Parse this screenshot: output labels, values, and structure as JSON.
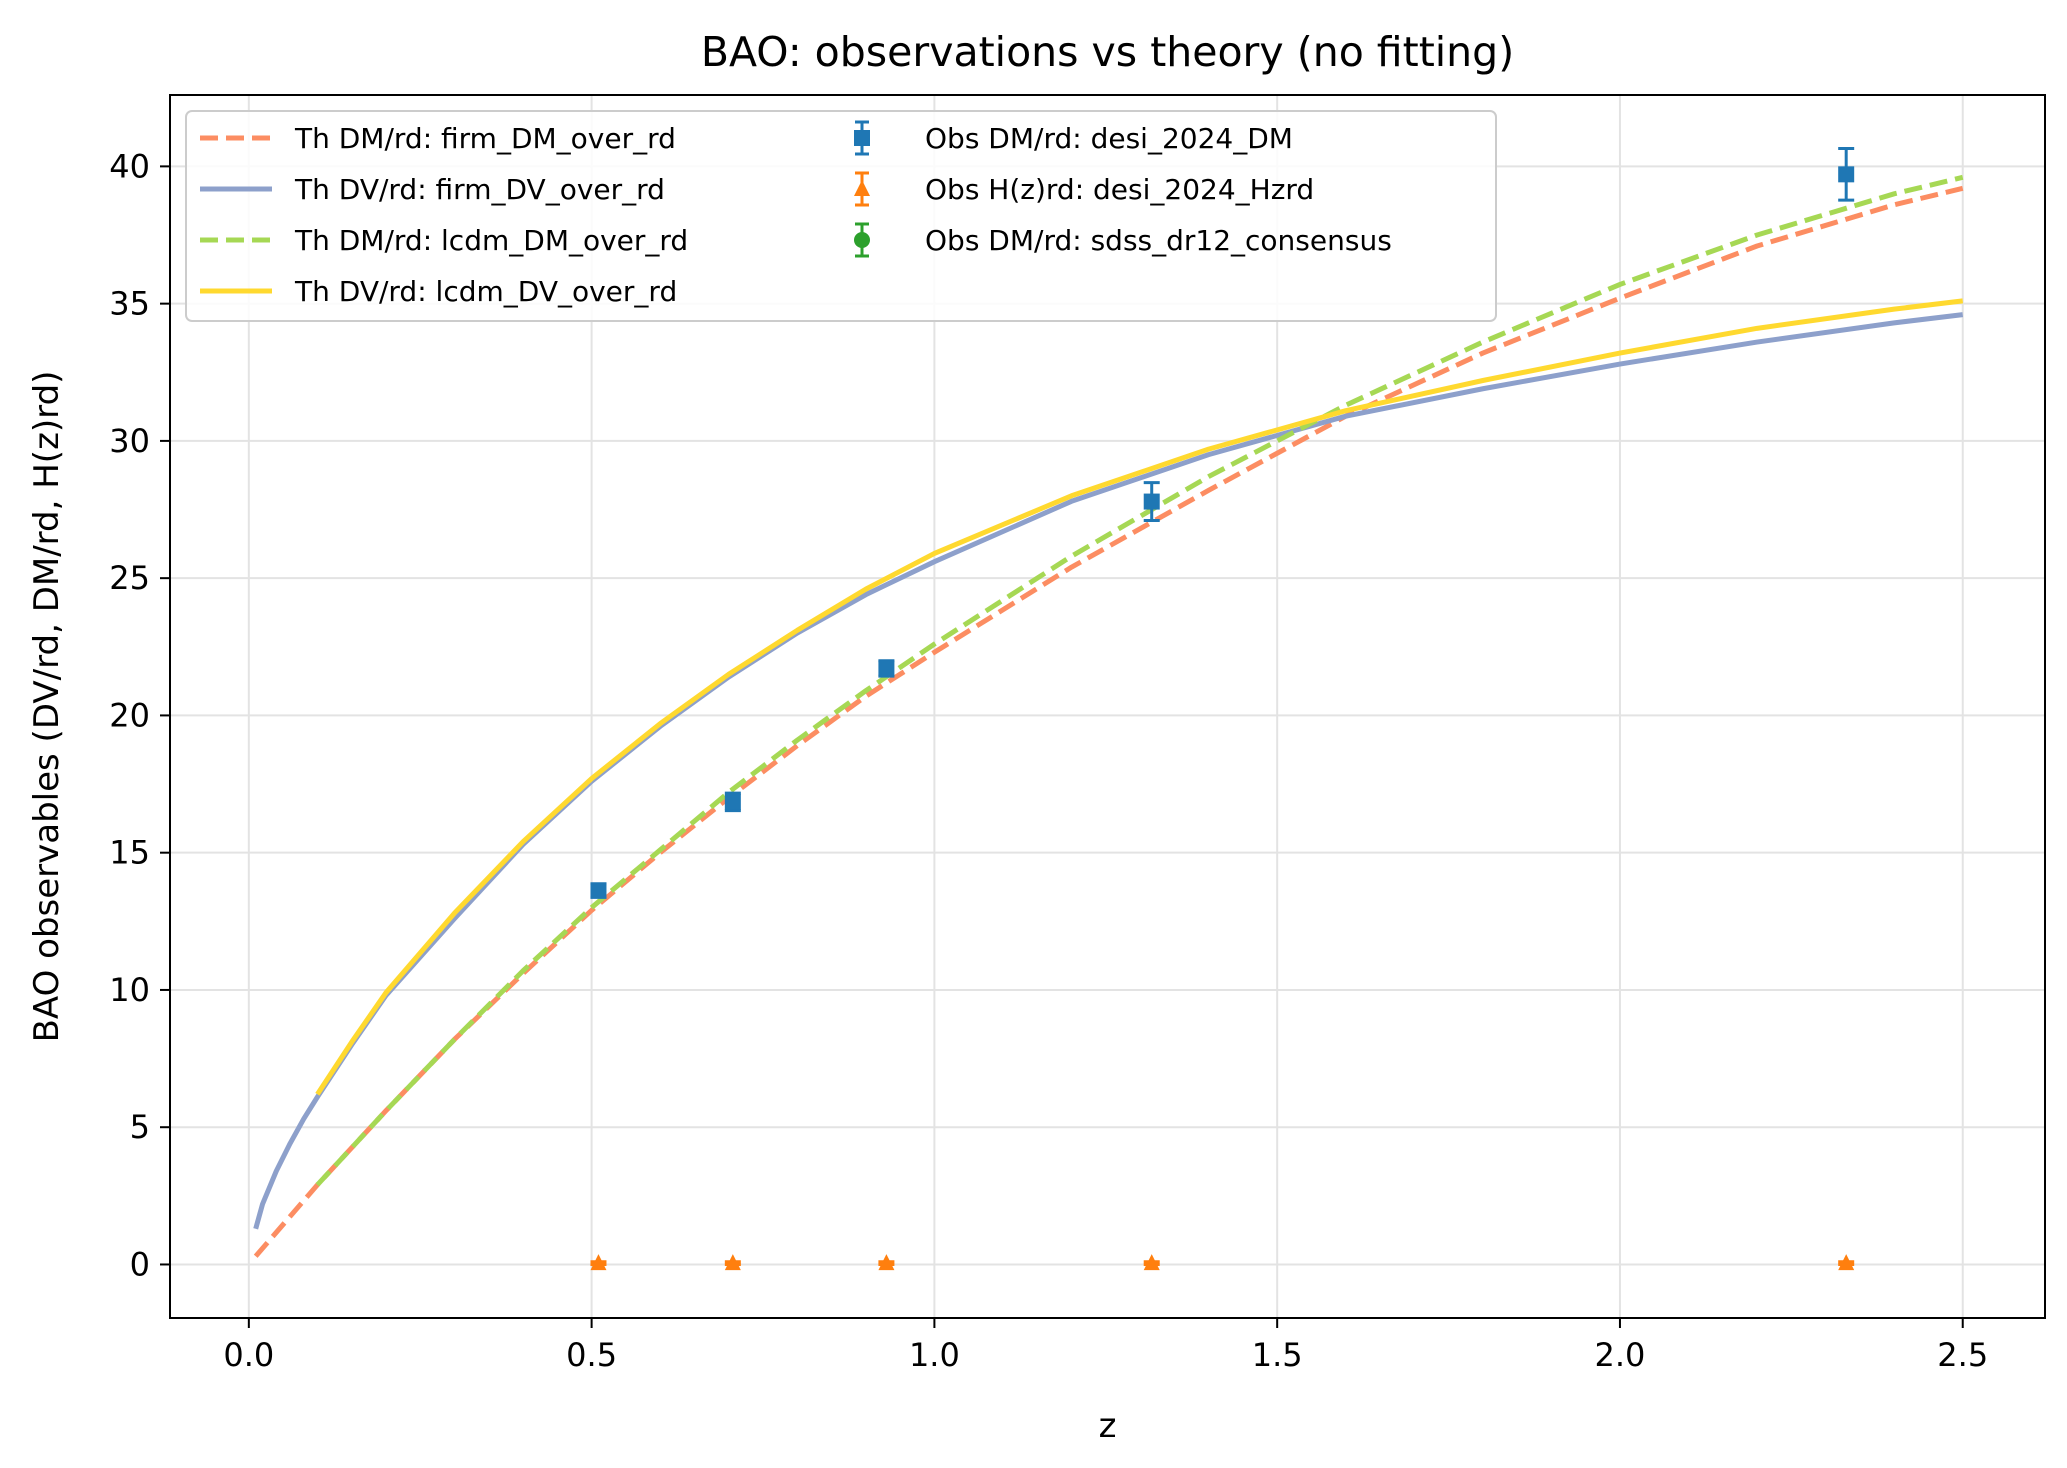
{
  "chart_data": {
    "type": "line",
    "title": "BAO: observations vs theory (no fitting)",
    "xlabel": "z",
    "ylabel": "BAO observables (DV/rd, DM/rd, H(z)rd)",
    "xlim": [
      -0.115,
      2.62
    ],
    "ylim": [
      -1.95,
      42.6
    ],
    "xticks": [
      0.0,
      0.5,
      1.0,
      1.5,
      2.0,
      2.5
    ],
    "xtick_labels": [
      "0.0",
      "0.5",
      "1.0",
      "1.5",
      "2.0",
      "2.5"
    ],
    "yticks": [
      0,
      5,
      10,
      15,
      20,
      25,
      30,
      35,
      40
    ],
    "ytick_labels": [
      "0",
      "5",
      "10",
      "15",
      "20",
      "25",
      "30",
      "35",
      "40"
    ],
    "grid": true,
    "legend_position": "top-left",
    "series": [
      {
        "name": "Th DM/rd: firm_DM_over_rd",
        "style": "dashed",
        "color": "#fc8d62",
        "x": [
          0.01,
          0.1,
          0.2,
          0.3,
          0.4,
          0.5,
          0.6,
          0.7,
          0.8,
          0.9,
          1.0,
          1.2,
          1.4,
          1.6,
          1.8,
          2.0,
          2.2,
          2.4,
          2.5
        ],
        "y": [
          0.3,
          2.9,
          5.6,
          8.2,
          10.6,
          12.9,
          15.0,
          17.0,
          18.9,
          20.7,
          22.3,
          25.4,
          28.2,
          30.9,
          33.2,
          35.2,
          37.1,
          38.6,
          39.2
        ]
      },
      {
        "name": "Th DV/rd: firm_DV_over_rd",
        "style": "solid",
        "color": "#8da0cb",
        "x": [
          0.01,
          0.02,
          0.04,
          0.06,
          0.08,
          0.1,
          0.15,
          0.2,
          0.3,
          0.4,
          0.5,
          0.6,
          0.7,
          0.8,
          0.9,
          1.0,
          1.2,
          1.4,
          1.6,
          1.8,
          2.0,
          2.2,
          2.4,
          2.5
        ],
        "y": [
          1.3,
          2.2,
          3.4,
          4.4,
          5.3,
          6.1,
          8.0,
          9.8,
          12.6,
          15.3,
          17.6,
          19.6,
          21.4,
          23.0,
          24.4,
          25.6,
          27.8,
          29.5,
          30.9,
          31.9,
          32.8,
          33.6,
          34.3,
          34.6
        ]
      },
      {
        "name": "Th DM/rd: lcdm_DM_over_rd",
        "style": "dashed",
        "color": "#a6d854",
        "x": [
          0.1,
          0.2,
          0.3,
          0.4,
          0.5,
          0.6,
          0.7,
          0.8,
          0.9,
          1.0,
          1.2,
          1.4,
          1.6,
          1.8,
          2.0,
          2.2,
          2.4,
          2.5
        ],
        "y": [
          2.9,
          5.6,
          8.2,
          10.7,
          13.0,
          15.1,
          17.2,
          19.1,
          20.9,
          22.6,
          25.8,
          28.7,
          31.3,
          33.6,
          35.7,
          37.5,
          39.0,
          39.6
        ]
      },
      {
        "name": "Th DV/rd: lcdm_DV_over_rd",
        "style": "solid",
        "color": "#ffd92f",
        "x": [
          0.1,
          0.15,
          0.2,
          0.3,
          0.4,
          0.5,
          0.6,
          0.7,
          0.8,
          0.9,
          1.0,
          1.2,
          1.4,
          1.6,
          1.8,
          2.0,
          2.2,
          2.4,
          2.5
        ],
        "y": [
          6.2,
          8.1,
          9.9,
          12.8,
          15.4,
          17.7,
          19.7,
          21.5,
          23.1,
          24.6,
          25.9,
          28.0,
          29.7,
          31.1,
          32.2,
          33.2,
          34.1,
          34.8,
          35.1
        ]
      },
      {
        "name": "Obs DM/rd: desi_2024_DM",
        "type": "errorbar",
        "marker": "square",
        "color": "#1f77b4",
        "x": [
          0.51,
          0.706,
          0.93,
          1.317,
          2.33
        ],
        "y": [
          13.62,
          16.85,
          21.71,
          27.79,
          39.71
        ],
        "yerr": [
          0.25,
          0.32,
          0.28,
          0.69,
          0.94
        ]
      },
      {
        "name": "Obs H(z)rd: desi_2024_Hzrd",
        "type": "errorbar",
        "marker": "triangle",
        "color": "#ff7f0e",
        "x": [
          0.51,
          0.706,
          0.93,
          1.317,
          2.33
        ],
        "y": [
          0.05,
          0.05,
          0.05,
          0.05,
          0.05
        ],
        "yerr": [
          0.05,
          0.05,
          0.05,
          0.05,
          0.05
        ]
      },
      {
        "name": "Obs DM/rd: sdss_dr12_consensus",
        "type": "errorbar",
        "marker": "circle",
        "color": "#2ca02c",
        "x": [],
        "y": [],
        "yerr": []
      }
    ]
  }
}
